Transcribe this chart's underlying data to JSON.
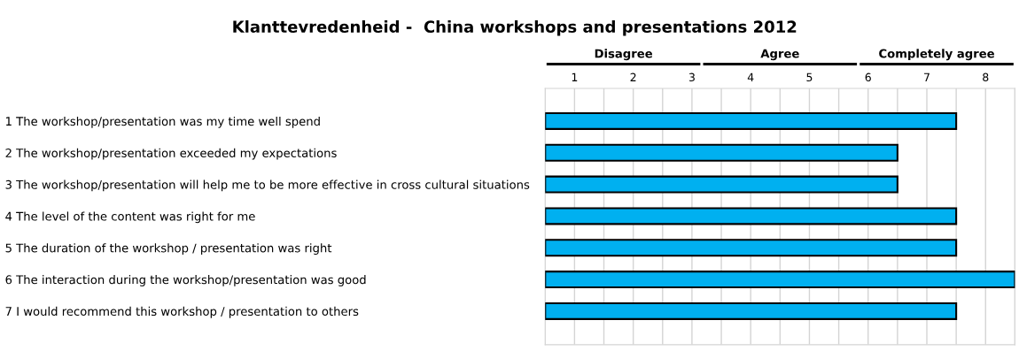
{
  "chart_data": {
    "type": "bar",
    "orientation": "horizontal",
    "title": "Klanttevredenheid -  China workshops and presentations 2012",
    "categories": [
      "1 The workshop/presentation was my time well spend",
      "2 The workshop/presentation exceeded my expectations",
      "3 The workshop/presentation will help me to be more effective in cross cultural situations",
      "4 The level of the content was right for me",
      "5 The duration of the workshop / presentation was right",
      "6 The interaction during the workshop/presentation was good",
      "7 I would recommend this workshop / presentation to others"
    ],
    "values": [
      7,
      6,
      6,
      7,
      7,
      8,
      7
    ],
    "color": "#00b0f0",
    "xlim": [
      0,
      8
    ],
    "xticks": [
      {
        "value": 0,
        "label": null
      },
      {
        "value": 0.5,
        "label": "1"
      },
      {
        "value": 1,
        "label": null
      },
      {
        "value": 1.5,
        "label": "2"
      },
      {
        "value": 2,
        "label": null
      },
      {
        "value": 2.5,
        "label": "3"
      },
      {
        "value": 3,
        "label": null
      },
      {
        "value": 3.5,
        "label": "4"
      },
      {
        "value": 4,
        "label": null
      },
      {
        "value": 4.5,
        "label": "5"
      },
      {
        "value": 5,
        "label": null
      },
      {
        "value": 5.5,
        "label": "6"
      },
      {
        "value": 6,
        "label": null
      },
      {
        "value": 6.5,
        "label": "7"
      },
      {
        "value": 7,
        "label": null
      },
      {
        "value": 7.5,
        "label": "8"
      },
      {
        "value": 8,
        "label": null
      }
    ],
    "annotations": [
      "Disagree",
      "Agree",
      "Completely agree"
    ],
    "grid": "x"
  }
}
